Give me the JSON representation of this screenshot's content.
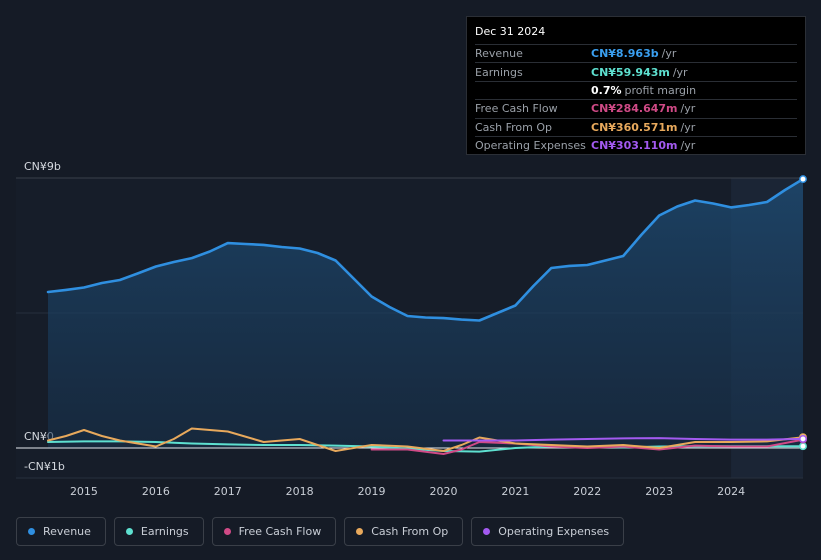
{
  "chart_data": {
    "type": "area",
    "y_ticks": [
      {
        "value": 9,
        "label": "CN¥9b"
      },
      {
        "value": 0,
        "label": "CN¥0"
      },
      {
        "value": -1,
        "label": "-CN¥1b"
      }
    ],
    "ylim": [
      -1,
      9
    ],
    "xlim": [
      2014.5,
      2025.0
    ],
    "x_ticks": [
      "2015",
      "2016",
      "2017",
      "2018",
      "2019",
      "2020",
      "2021",
      "2022",
      "2023",
      "2024"
    ],
    "highlight_from": 2024.0,
    "series": [
      {
        "name": "Revenue",
        "color": "#2f8fe0",
        "fill": true,
        "points": [
          [
            2014.5,
            5.2
          ],
          [
            2014.75,
            5.27
          ],
          [
            2015.0,
            5.35
          ],
          [
            2015.25,
            5.5
          ],
          [
            2015.5,
            5.6
          ],
          [
            2015.75,
            5.82
          ],
          [
            2016.0,
            6.05
          ],
          [
            2016.25,
            6.2
          ],
          [
            2016.5,
            6.33
          ],
          [
            2016.75,
            6.55
          ],
          [
            2017.0,
            6.83
          ],
          [
            2017.25,
            6.8
          ],
          [
            2017.5,
            6.77
          ],
          [
            2017.75,
            6.7
          ],
          [
            2018.0,
            6.65
          ],
          [
            2018.25,
            6.5
          ],
          [
            2018.5,
            6.25
          ],
          [
            2018.75,
            5.65
          ],
          [
            2019.0,
            5.05
          ],
          [
            2019.25,
            4.7
          ],
          [
            2019.5,
            4.4
          ],
          [
            2019.75,
            4.35
          ],
          [
            2020.0,
            4.33
          ],
          [
            2020.25,
            4.28
          ],
          [
            2020.5,
            4.25
          ],
          [
            2020.75,
            4.5
          ],
          [
            2021.0,
            4.75
          ],
          [
            2021.25,
            5.4
          ],
          [
            2021.5,
            6.0
          ],
          [
            2021.75,
            6.07
          ],
          [
            2022.0,
            6.1
          ],
          [
            2022.25,
            6.25
          ],
          [
            2022.5,
            6.4
          ],
          [
            2022.75,
            7.1
          ],
          [
            2023.0,
            7.75
          ],
          [
            2023.25,
            8.05
          ],
          [
            2023.5,
            8.25
          ],
          [
            2023.75,
            8.15
          ],
          [
            2024.0,
            8.02
          ],
          [
            2024.25,
            8.1
          ],
          [
            2024.5,
            8.2
          ],
          [
            2024.75,
            8.6
          ],
          [
            2025.0,
            8.963
          ]
        ]
      },
      {
        "name": "Earnings",
        "color": "#5ee0d0",
        "fill": false,
        "points": [
          [
            2014.5,
            0.2
          ],
          [
            2015.0,
            0.22
          ],
          [
            2015.5,
            0.22
          ],
          [
            2016.0,
            0.2
          ],
          [
            2016.5,
            0.15
          ],
          [
            2017.0,
            0.12
          ],
          [
            2017.5,
            0.1
          ],
          [
            2018.0,
            0.1
          ],
          [
            2018.5,
            0.08
          ],
          [
            2019.0,
            0.05
          ],
          [
            2019.5,
            -0.02
          ],
          [
            2020.0,
            -0.1
          ],
          [
            2020.5,
            -0.12
          ],
          [
            2021.0,
            0.0
          ],
          [
            2021.5,
            0.05
          ],
          [
            2022.0,
            0.05
          ],
          [
            2022.5,
            0.02
          ],
          [
            2023.0,
            0.05
          ],
          [
            2023.5,
            0.06
          ],
          [
            2024.0,
            0.06
          ],
          [
            2024.5,
            0.06
          ],
          [
            2025.0,
            0.06
          ]
        ]
      },
      {
        "name": "Free Cash Flow",
        "color": "#d04a86",
        "fill": false,
        "points": [
          [
            2019.0,
            -0.05
          ],
          [
            2019.5,
            -0.05
          ],
          [
            2020.0,
            -0.2
          ],
          [
            2020.25,
            -0.05
          ],
          [
            2020.5,
            0.2
          ],
          [
            2021.0,
            0.15
          ],
          [
            2021.5,
            0.05
          ],
          [
            2022.0,
            0.0
          ],
          [
            2022.5,
            0.05
          ],
          [
            2023.0,
            -0.05
          ],
          [
            2023.5,
            0.08
          ],
          [
            2024.0,
            0.05
          ],
          [
            2024.5,
            0.05
          ],
          [
            2025.0,
            0.28
          ]
        ]
      },
      {
        "name": "Cash From Op",
        "color": "#e8a95c",
        "fill": false,
        "points": [
          [
            2014.5,
            0.25
          ],
          [
            2014.75,
            0.4
          ],
          [
            2015.0,
            0.6
          ],
          [
            2015.25,
            0.4
          ],
          [
            2015.5,
            0.25
          ],
          [
            2016.0,
            0.05
          ],
          [
            2016.25,
            0.3
          ],
          [
            2016.5,
            0.65
          ],
          [
            2017.0,
            0.55
          ],
          [
            2017.5,
            0.2
          ],
          [
            2018.0,
            0.3
          ],
          [
            2018.25,
            0.1
          ],
          [
            2018.5,
            -0.1
          ],
          [
            2019.0,
            0.1
          ],
          [
            2019.5,
            0.05
          ],
          [
            2020.0,
            -0.1
          ],
          [
            2020.25,
            0.1
          ],
          [
            2020.5,
            0.35
          ],
          [
            2021.0,
            0.15
          ],
          [
            2021.5,
            0.1
          ],
          [
            2022.0,
            0.05
          ],
          [
            2022.5,
            0.1
          ],
          [
            2023.0,
            0.0
          ],
          [
            2023.5,
            0.2
          ],
          [
            2024.0,
            0.2
          ],
          [
            2024.5,
            0.22
          ],
          [
            2025.0,
            0.36
          ]
        ]
      },
      {
        "name": "Operating Expenses",
        "color": "#a35af0",
        "fill": false,
        "points": [
          [
            2020.0,
            0.25
          ],
          [
            2020.5,
            0.25
          ],
          [
            2021.0,
            0.25
          ],
          [
            2021.5,
            0.28
          ],
          [
            2022.0,
            0.3
          ],
          [
            2022.5,
            0.32
          ],
          [
            2023.0,
            0.33
          ],
          [
            2023.5,
            0.3
          ],
          [
            2024.0,
            0.28
          ],
          [
            2024.5,
            0.28
          ],
          [
            2025.0,
            0.303
          ]
        ]
      }
    ]
  },
  "tooltip": {
    "date": "Dec 31 2024",
    "rows": [
      {
        "label": "Revenue",
        "value": "CN¥8.963b",
        "unit": "/yr",
        "color": "#3a9ff0"
      },
      {
        "label": "Earnings",
        "value": "CN¥59.943m",
        "unit": "/yr",
        "color": "#5ee0d0"
      },
      {
        "label": "",
        "value": "0.7%",
        "unit": "profit margin",
        "color": "#ffffff"
      },
      {
        "label": "Free Cash Flow",
        "value": "CN¥284.647m",
        "unit": "/yr",
        "color": "#d04a86"
      },
      {
        "label": "Cash From Op",
        "value": "CN¥360.571m",
        "unit": "/yr",
        "color": "#e8a95c"
      },
      {
        "label": "Operating Expenses",
        "value": "CN¥303.110m",
        "unit": "/yr",
        "color": "#a35af0"
      }
    ]
  },
  "legend": [
    {
      "label": "Revenue",
      "color": "#2f8fe0"
    },
    {
      "label": "Earnings",
      "color": "#5ee0d0"
    },
    {
      "label": "Free Cash Flow",
      "color": "#d04a86"
    },
    {
      "label": "Cash From Op",
      "color": "#e8a95c"
    },
    {
      "label": "Operating Expenses",
      "color": "#a35af0"
    }
  ]
}
